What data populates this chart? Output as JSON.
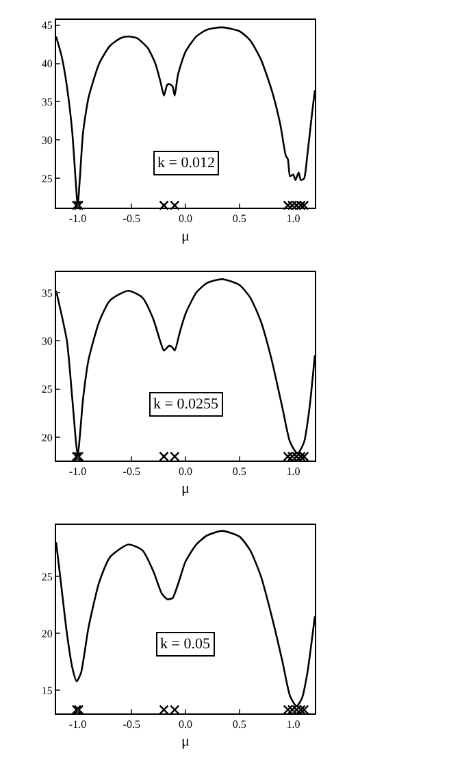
{
  "chart_data": [
    {
      "type": "line",
      "xlabel": "μ",
      "annotations": [
        "k = 0.012"
      ],
      "xlim": [
        -1.2,
        1.2
      ],
      "ylim": [
        21.2,
        45.7
      ],
      "xticks": [
        {
          "value": -1,
          "label": "-1.0"
        },
        {
          "value": -0.5,
          "label": "-0.5"
        },
        {
          "value": 0,
          "label": "0.0"
        },
        {
          "value": 0.5,
          "label": "0.5"
        },
        {
          "value": 1,
          "label": "1.0"
        }
      ],
      "yticks": [
        25,
        30,
        35,
        40,
        45
      ],
      "series": [
        {
          "color": "#000000",
          "marker": "none",
          "x": [
            -1.2,
            -1.15,
            -1.1,
            -1.05,
            -1.02,
            -1.0,
            -0.98,
            -0.95,
            -0.9,
            -0.8,
            -0.7,
            -0.6,
            -0.53,
            -0.45,
            -0.35,
            -0.28,
            -0.23,
            -0.2,
            -0.17,
            -0.15,
            -0.12,
            -0.1,
            -0.07,
            0,
            0.1,
            0.2,
            0.34,
            0.5,
            0.6,
            0.7,
            0.8,
            0.88,
            0.93,
            0.95,
            0.97,
            1.0,
            1.02,
            1.05,
            1.07,
            1.1,
            1.13,
            1.17,
            1.2
          ],
          "values": [
            43.5,
            41,
            37,
            31,
            25,
            21.5,
            25,
            31,
            35.5,
            40,
            42.3,
            43.3,
            43.5,
            43.3,
            42,
            40,
            37.5,
            35.8,
            37.2,
            37.3,
            37,
            35.8,
            38.5,
            41.5,
            43.5,
            44.4,
            44.7,
            44.2,
            43,
            40.5,
            36.5,
            32,
            28,
            27.5,
            25.3,
            25.5,
            24.8,
            25.8,
            24.8,
            25,
            28,
            33,
            36.5
          ]
        },
        {
          "type": "scatter",
          "color": "#000000",
          "marker": "cross",
          "x": [
            -1.01,
            -0.99,
            -0.2,
            -0.1,
            0.95,
            0.99,
            1.03,
            1.07,
            1.1
          ],
          "values": [
            21.5,
            21.5,
            21.5,
            21.5,
            21.5,
            21.5,
            21.5,
            21.5,
            21.5
          ]
        }
      ]
    },
    {
      "type": "line",
      "xlabel": "μ",
      "annotations": [
        "k = 0.0255"
      ],
      "xlim": [
        -1.2,
        1.2
      ],
      "ylim": [
        17.6,
        37.1
      ],
      "xticks": [
        {
          "value": -1,
          "label": "-1.0"
        },
        {
          "value": -0.5,
          "label": "-0.5"
        },
        {
          "value": 0,
          "label": "0.0"
        },
        {
          "value": 0.5,
          "label": "0.5"
        },
        {
          "value": 1,
          "label": "1.0"
        }
      ],
      "yticks": [
        20,
        25,
        30,
        35
      ],
      "series": [
        {
          "color": "#000000",
          "marker": "none",
          "x": [
            -1.2,
            -1.1,
            -1.05,
            -1.0,
            -0.95,
            -0.9,
            -0.8,
            -0.7,
            -0.53,
            -0.4,
            -0.3,
            -0.23,
            -0.2,
            -0.15,
            -0.12,
            -0.1,
            -0.05,
            0,
            0.1,
            0.2,
            0.34,
            0.5,
            0.6,
            0.7,
            0.8,
            0.9,
            0.97,
            1.04,
            1.1,
            1.15,
            1.2
          ],
          "values": [
            35.2,
            30,
            24,
            18.2,
            24,
            28,
            32,
            34.2,
            35.2,
            34.5,
            32.3,
            29.8,
            29,
            29.5,
            29.3,
            29,
            31,
            32.8,
            35,
            36,
            36.4,
            35.8,
            34.5,
            32,
            28,
            23,
            19.5,
            18.3,
            19.5,
            23,
            28.5
          ]
        },
        {
          "type": "scatter",
          "color": "#000000",
          "marker": "cross",
          "x": [
            -1.01,
            -0.99,
            -0.2,
            -0.1,
            0.95,
            0.99,
            1.03,
            1.07,
            1.1
          ],
          "values": [
            18,
            18,
            18,
            18,
            18,
            18,
            18,
            18,
            18
          ]
        }
      ]
    },
    {
      "type": "line",
      "xlabel": "μ",
      "annotations": [
        "k = 0.05"
      ],
      "xlim": [
        -1.2,
        1.2
      ],
      "ylim": [
        13.0,
        29.5
      ],
      "xticks": [
        {
          "value": -1,
          "label": "-1.0"
        },
        {
          "value": -0.5,
          "label": "-0.5"
        },
        {
          "value": 0,
          "label": "0.0"
        },
        {
          "value": 0.5,
          "label": "0.5"
        },
        {
          "value": 1,
          "label": "1.0"
        }
      ],
      "yticks": [
        15,
        20,
        25
      ],
      "series": [
        {
          "color": "#000000",
          "marker": "none",
          "x": [
            -1.2,
            -1.15,
            -1.1,
            -1.05,
            -1.01,
            -0.97,
            -0.9,
            -0.8,
            -0.7,
            -0.53,
            -0.4,
            -0.3,
            -0.22,
            -0.17,
            -0.12,
            -0.07,
            0,
            0.1,
            0.2,
            0.34,
            0.5,
            0.6,
            0.7,
            0.8,
            0.9,
            0.97,
            1.03,
            1.08,
            1.13,
            1.2
          ],
          "values": [
            28,
            24,
            20,
            17,
            15.8,
            16.5,
            20.5,
            24.5,
            26.7,
            27.8,
            27.3,
            25.5,
            23.5,
            23,
            23.1,
            24.3,
            26.3,
            27.8,
            28.6,
            29,
            28.5,
            27.3,
            25,
            21.5,
            17.5,
            14.5,
            13.6,
            14.3,
            16.5,
            21.5
          ]
        },
        {
          "type": "scatter",
          "color": "#000000",
          "marker": "cross",
          "x": [
            -1.01,
            -0.99,
            -0.2,
            -0.1,
            0.95,
            0.99,
            1.03,
            1.07,
            1.1
          ],
          "values": [
            13.3,
            13.3,
            13.3,
            13.3,
            13.3,
            13.3,
            13.3,
            13.3,
            13.3
          ]
        }
      ]
    }
  ]
}
